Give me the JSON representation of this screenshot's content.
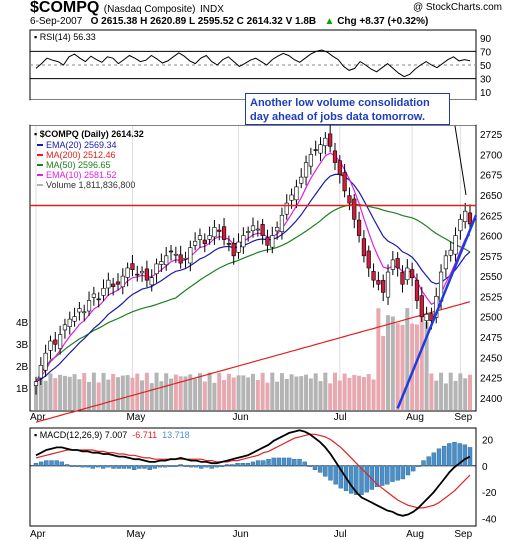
{
  "header": {
    "symbol": "$COMPQ",
    "name": "(Nasdaq Composite)",
    "exchange": "INDX",
    "brand": "@ StockCharts.com",
    "date": "6-Sep-2007",
    "ohlc": "O 2615.38  H 2620.89  L 2595.52  C 2614.32  V 1.8B",
    "chg": "Chg +8.37 (+0.32%)",
    "chg_arrow": "▲"
  },
  "annotation": "Another low volume consolidation day ahead of jobs data tomorrow.",
  "colors": {
    "candle_up": "#ffffff",
    "candle_down": "#d01c3c",
    "ema20": "#1a1aa8",
    "ma200": "#e02020",
    "ma50": "#208020",
    "ema10": "#e020e0",
    "volume_up": "#b4b4b4",
    "volume_down": "#e8a8b0",
    "resistance": "#e02020",
    "trendline": "#1f3cdf",
    "macd_hist": "#4a90c8",
    "macd_line": "#000000",
    "signal_line": "#e02020"
  },
  "chart_data": [
    {
      "type": "line",
      "panel": "RSI",
      "title": "RSI(14) 56.33",
      "ylim": [
        0,
        100
      ],
      "y_ticks": [
        90,
        70,
        50,
        30,
        10
      ],
      "reference_lines": [
        70,
        30
      ],
      "series": [
        {
          "name": "RSI(14)",
          "values": [
            45,
            52,
            60,
            57,
            55,
            50,
            62,
            66,
            60,
            55,
            63,
            58,
            54,
            62,
            60,
            52,
            58,
            64,
            60,
            55,
            57,
            64,
            59,
            53,
            56,
            62,
            68,
            63,
            56,
            52,
            60,
            64,
            55,
            50,
            58,
            62,
            55,
            48,
            52,
            57,
            60,
            55,
            50,
            58,
            63,
            67,
            64,
            58,
            54,
            60,
            66,
            70,
            72,
            69,
            63,
            58,
            48,
            42,
            45,
            55,
            50,
            44,
            40,
            46,
            52,
            45,
            38,
            33,
            36,
            44,
            50,
            55,
            50,
            46,
            52,
            58,
            62,
            56,
            58,
            56.33
          ]
        }
      ]
    },
    {
      "type": "candlestick",
      "panel": "Price",
      "title": "$COMPQ (Daily) 2614.32",
      "x_ticks": [
        "Apr",
        "May",
        "Jun",
        "Jul",
        "Aug",
        "Sep"
      ],
      "y_ticks": [
        2725,
        2700,
        2675,
        2650,
        2625,
        2600,
        2575,
        2550,
        2525,
        2500,
        2475,
        2450,
        2425,
        2400
      ],
      "ylim": [
        2385,
        2735
      ],
      "volume_ticks": [
        "4B",
        "3B",
        "2B",
        "1B"
      ],
      "legend": [
        {
          "label": "EMA(20) 2569.34",
          "color": "#1a1aa8"
        },
        {
          "label": "MA(200) 2512.46",
          "color": "#e02020"
        },
        {
          "label": "MA(50) 2596.65",
          "color": "#208020"
        },
        {
          "label": "EMA(10) 2581.52",
          "color": "#e020e0"
        },
        {
          "label": "Volume 1,811,836,800",
          "color": "#b4b4b4"
        }
      ],
      "resistance_level": 2637,
      "trendline": {
        "from": [
          "Aug 16",
          2387
        ],
        "to": [
          "Sep 6",
          2625
        ]
      },
      "close": [
        2420,
        2440,
        2455,
        2470,
        2466,
        2478,
        2490,
        2497,
        2500,
        2510,
        2506,
        2520,
        2528,
        2522,
        2535,
        2545,
        2537,
        2540,
        2550,
        2560,
        2558,
        2552,
        2556,
        2545,
        2548,
        2565,
        2568,
        2575,
        2580,
        2577,
        2566,
        2572,
        2585,
        2593,
        2600,
        2590,
        2600,
        2610,
        2605,
        2595,
        2590,
        2575,
        2592,
        2600,
        2605,
        2612,
        2608,
        2600,
        2588,
        2600,
        2610,
        2625,
        2640,
        2650,
        2660,
        2672,
        2690,
        2700,
        2705,
        2712,
        2720,
        2710,
        2690,
        2675,
        2655,
        2640,
        2620,
        2600,
        2575,
        2560,
        2545,
        2540,
        2530,
        2555,
        2570,
        2560,
        2540,
        2560,
        2548,
        2520,
        2500,
        2503,
        2495,
        2525,
        2555,
        2575,
        2582,
        2600,
        2620,
        2630,
        2614.32
      ]
    },
    {
      "type": "bar+line",
      "panel": "MACD",
      "title": "MACD(12,26,9) 7.007, -6.711, 13.718",
      "legend": [
        {
          "label": "MACD(12,26,9) 7.007",
          "color": "#000000"
        },
        {
          "label": "-6.711",
          "color": "#e02020"
        },
        {
          "label": "13.718",
          "color": "#4a90c8"
        }
      ],
      "ylim": [
        -45,
        28
      ],
      "y_ticks": [
        20,
        0,
        -20,
        -40
      ],
      "x_ticks": [
        "Apr",
        "May",
        "Jun",
        "Jul",
        "Aug",
        "Sep"
      ],
      "series": [
        {
          "name": "MACD",
          "values": [
            8,
            10,
            12,
            13,
            14,
            14,
            13,
            12,
            12,
            11,
            11,
            10,
            10,
            9,
            9,
            8,
            7,
            7,
            6,
            5,
            5,
            4,
            3,
            3,
            4,
            4,
            5,
            5,
            6,
            5,
            4,
            4,
            3,
            3,
            2,
            2,
            3,
            4,
            5,
            6,
            7,
            8,
            10,
            12,
            14,
            16,
            19,
            21,
            23,
            25,
            26,
            27,
            26,
            24,
            21,
            18,
            14,
            9,
            3,
            -3,
            -9,
            -15,
            -20,
            -24,
            -26,
            -28,
            -30,
            -32,
            -34,
            -35,
            -37,
            -38,
            -37,
            -35,
            -32,
            -28,
            -24,
            -20,
            -15,
            -10,
            -5,
            -1,
            2,
            5,
            7
          ]
        },
        {
          "name": "Signal",
          "values": [
            6,
            7,
            8,
            9,
            10,
            11,
            12,
            12,
            12,
            12,
            12,
            12,
            11,
            11,
            10,
            10,
            9,
            9,
            8,
            8,
            7,
            6,
            6,
            5,
            5,
            5,
            5,
            5,
            5,
            5,
            5,
            5,
            5,
            4,
            4,
            3,
            3,
            3,
            4,
            4,
            5,
            6,
            7,
            8,
            10,
            11,
            13,
            15,
            17,
            19,
            21,
            22,
            23,
            24,
            24,
            23,
            22,
            20,
            17,
            14,
            10,
            6,
            2,
            -2,
            -6,
            -10,
            -14,
            -17,
            -20,
            -23,
            -26,
            -28,
            -30,
            -31,
            -32,
            -32,
            -31,
            -30,
            -28,
            -25,
            -22,
            -19,
            -15,
            -11,
            -7
          ]
        },
        {
          "name": "Histogram",
          "values": [
            2,
            3,
            4,
            4,
            4,
            3,
            1,
            0,
            0,
            -1,
            -1,
            -2,
            -1,
            -2,
            -1,
            -2,
            -2,
            -2,
            -2,
            -3,
            -2,
            -2,
            -3,
            -2,
            -1,
            -1,
            0,
            0,
            1,
            0,
            -1,
            -1,
            -2,
            -1,
            -2,
            -1,
            0,
            1,
            1,
            2,
            2,
            2,
            3,
            4,
            4,
            5,
            6,
            6,
            6,
            6,
            5,
            5,
            3,
            0,
            -3,
            -5,
            -8,
            -11,
            -14,
            -17,
            -19,
            -21,
            -22,
            -22,
            -20,
            -18,
            -16,
            -15,
            -14,
            -12,
            -11,
            -10,
            -7,
            -4,
            0,
            4,
            7,
            10,
            13,
            15,
            17,
            18,
            17,
            16,
            14
          ]
        }
      ]
    }
  ]
}
